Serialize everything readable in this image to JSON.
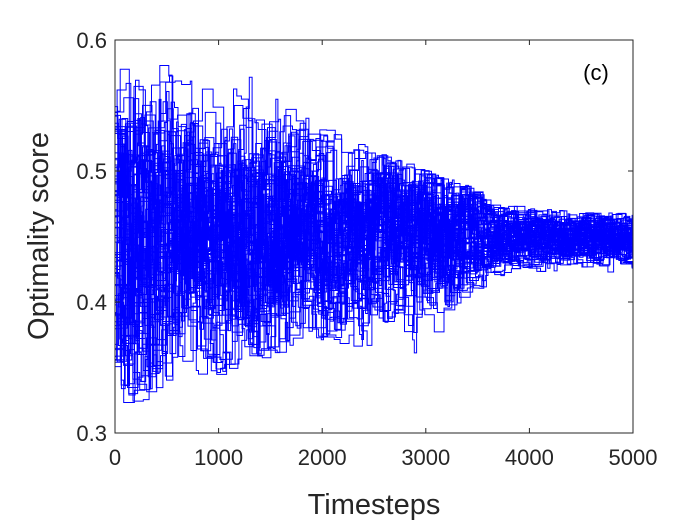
{
  "chart_data": {
    "type": "line",
    "title": "",
    "panel_label": "(c)",
    "xlabel": "Timesteps",
    "ylabel": "Optimality score",
    "xlim": [
      0,
      5000
    ],
    "ylim": [
      0.3,
      0.6
    ],
    "xticks": [
      0,
      1000,
      2000,
      3000,
      4000,
      5000
    ],
    "xtick_labels": [
      "0",
      "1000",
      "2000",
      "3000",
      "4000",
      "5000"
    ],
    "yticks": [
      0.3,
      0.4,
      0.5,
      0.6
    ],
    "ytick_labels": [
      "0.3",
      "0.4",
      "0.5",
      "0.6"
    ],
    "grid": false,
    "legend": "none",
    "line_color": "#0000ff",
    "num_traces": 80,
    "line_style": "step",
    "envelope": {
      "x": [
        0,
        200,
        1000,
        1400,
        2000,
        3000,
        3400,
        3600,
        4000,
        5000
      ],
      "upper": [
        0.6,
        0.595,
        0.555,
        0.6,
        0.535,
        0.5,
        0.49,
        0.475,
        0.472,
        0.467
      ],
      "lower": [
        0.3,
        0.315,
        0.345,
        0.355,
        0.37,
        0.35,
        0.385,
        0.42,
        0.42,
        0.42
      ],
      "center": 0.45
    }
  }
}
